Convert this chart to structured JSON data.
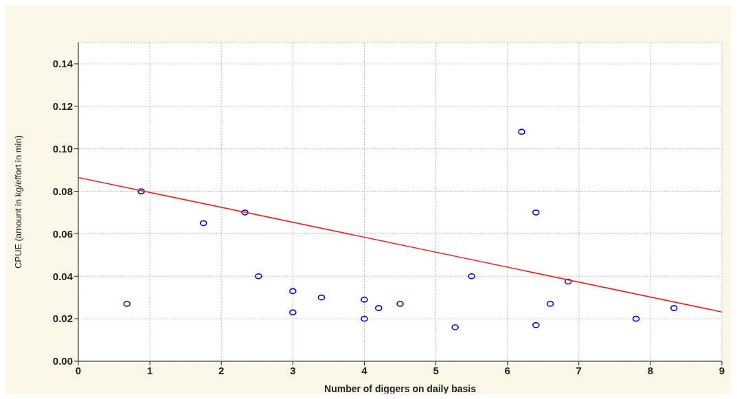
{
  "chart_data": {
    "type": "scatter",
    "xlabel": "Number of diggers on daily basis",
    "ylabel": "CPUE (amount in kg/effort in min)",
    "xlim": [
      0,
      9
    ],
    "xticks": [
      0,
      1,
      2,
      3,
      4,
      5,
      6,
      7,
      8,
      9
    ],
    "ylim": [
      0,
      0.15
    ],
    "yticks": [
      {
        "value": 0,
        "label": "0.00"
      },
      {
        "value": 0.02,
        "label": "0.02"
      },
      {
        "value": 0.04,
        "label": "0.04"
      },
      {
        "value": 0.06,
        "label": "0.06"
      },
      {
        "value": 0.08,
        "label": "0.08"
      },
      {
        "value": 0.1,
        "label": "0.10"
      },
      {
        "value": 0.12,
        "label": "0.12"
      },
      {
        "value": 0.14,
        "label": "0.14"
      }
    ],
    "grid": true,
    "series": [
      {
        "marker": "circle",
        "color": "#0000cc",
        "x": [
          0.68,
          0.88,
          1.75,
          2.33,
          2.52,
          3.0,
          3.0,
          3.4,
          4.0,
          4.0,
          4.2,
          4.5,
          5.27,
          5.5,
          6.2,
          6.4,
          6.4,
          6.6,
          6.85,
          7.8,
          8.33
        ],
        "values": [
          0.027,
          0.08,
          0.065,
          0.07,
          0.04,
          0.033,
          0.023,
          0.03,
          0.029,
          0.02,
          0.025,
          0.027,
          0.016,
          0.04,
          0.108,
          0.07,
          0.017,
          0.027,
          0.0375,
          0.02,
          0.025
        ]
      },
      {
        "type": "line",
        "marker": "none",
        "color": "#ee2222",
        "x": [
          0,
          9
        ],
        "values": [
          0.0865,
          0.0232
        ]
      }
    ]
  }
}
